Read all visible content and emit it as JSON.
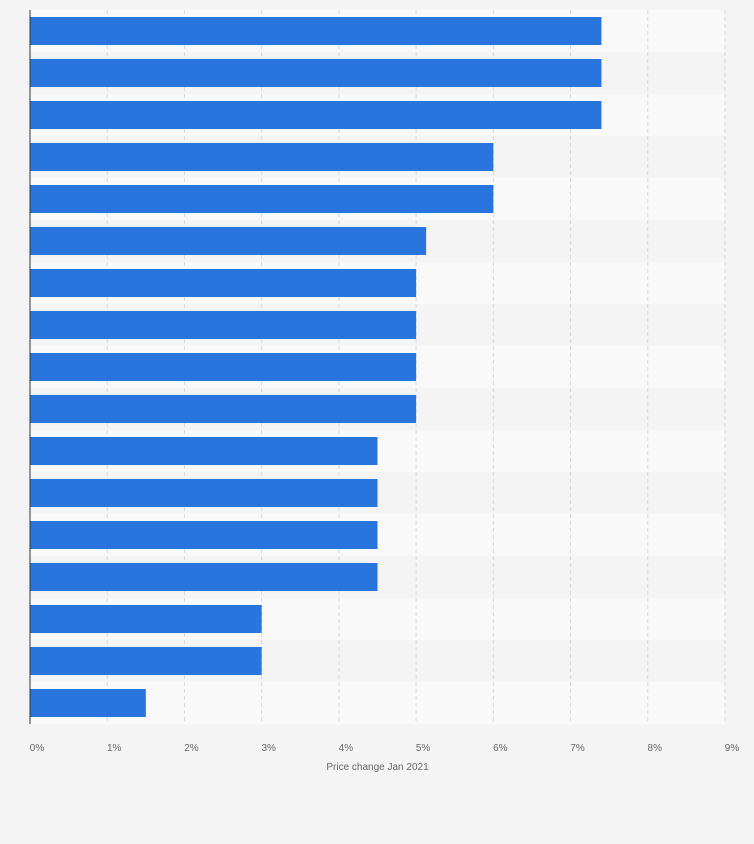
{
  "chart_data": {
    "type": "bar",
    "orientation": "horizontal",
    "title": "",
    "xlabel": "Price change Jan 2021",
    "ylabel": "",
    "categories": [
      "",
      "",
      "",
      "",
      "",
      "",
      "",
      "",
      "",
      "",
      "",
      "",
      "",
      "",
      "",
      "",
      ""
    ],
    "values": [
      7.4,
      7.4,
      7.4,
      6.0,
      6.0,
      5.13,
      5.0,
      5.0,
      5.0,
      5.0,
      4.5,
      4.5,
      4.5,
      4.5,
      3.0,
      3.0,
      1.5
    ],
    "xlim": [
      0,
      9
    ],
    "ticks": [
      "0%",
      "1%",
      "2%",
      "3%",
      "4%",
      "5%",
      "6%",
      "7%",
      "8%",
      "9%"
    ],
    "grid": true,
    "legend": "none",
    "colors": {
      "bar": "#2876dd",
      "grid": "#d9d9d9",
      "axis": "#333333",
      "tick_text": "#666666",
      "band_light": "#f9f9f9",
      "band_dark": "#f4f4f4",
      "background": "#f4f4f4"
    }
  }
}
